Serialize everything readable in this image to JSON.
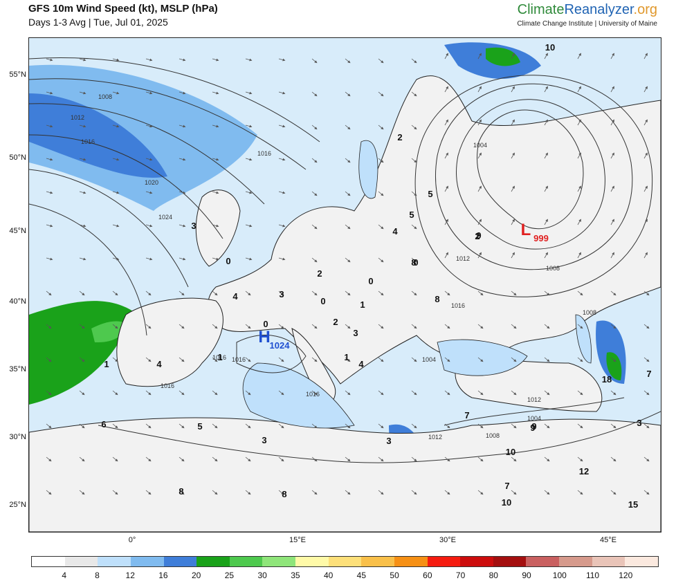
{
  "header": {
    "title": "GFS 10m Wind Speed (kt), MSLP (hPa)",
    "subtitle": "Days 1-3 Avg | Tue, Jul 01, 2025",
    "brand_part1": "Climate",
    "brand_part2": "Reanalyzer",
    "brand_part3": ".org",
    "brand_sub": "Climate Change Institute | University of Maine",
    "brand_colors": {
      "climate": "#2f8a3a",
      "reanalyzer": "#1f63b3",
      "org": "#e0982c"
    }
  },
  "map": {
    "lat_labels": [
      "55°N",
      "50°N",
      "45°N",
      "40°N",
      "35°N",
      "30°N",
      "25°N"
    ],
    "lon_labels": [
      "0°",
      "15°E",
      "30°E",
      "45°E"
    ],
    "pressure_centers": [
      {
        "type": "L",
        "value": "999",
        "color": "#e02020"
      },
      {
        "type": "H",
        "value": "1024",
        "color": "#1f4fd0"
      }
    ],
    "isobar_labels": [
      "1008",
      "1012",
      "1016",
      "1020",
      "1024",
      "1016",
      "1004",
      "1008",
      "1012",
      "1016",
      "1004",
      "1008",
      "1016",
      "1016",
      "1016",
      "1016",
      "1012",
      "1004",
      "1012",
      "1008"
    ],
    "wind_labels": [
      "10",
      "2",
      "5",
      "5",
      "3",
      "4",
      "2",
      "0",
      "2",
      "0",
      "0",
      "0",
      "1",
      "2",
      "3",
      "1",
      "1",
      "4",
      "0",
      "8",
      "8",
      "9",
      "3",
      "4",
      "4",
      "1",
      "6",
      "5",
      "3",
      "8",
      "8",
      "7",
      "3",
      "9",
      "10",
      "9",
      "7",
      "12",
      "10",
      "15",
      "18",
      "7",
      "3"
    ]
  },
  "legend": {
    "ticks": [
      "4",
      "8",
      "12",
      "16",
      "20",
      "25",
      "30",
      "35",
      "40",
      "45",
      "50",
      "60",
      "70",
      "80",
      "90",
      "100",
      "110",
      "120"
    ],
    "colors": [
      "#ffffff",
      "#e8e8e8",
      "#bfe0fb",
      "#80bbef",
      "#3f7ed9",
      "#1aa21a",
      "#4ec94e",
      "#8fe57a",
      "#fffaa8",
      "#fde07a",
      "#f9c04a",
      "#f69015",
      "#f51c10",
      "#cc0d0d",
      "#a40f0f",
      "#c96060",
      "#d69a8c",
      "#e9c4b8",
      "#fbe9df"
    ]
  }
}
